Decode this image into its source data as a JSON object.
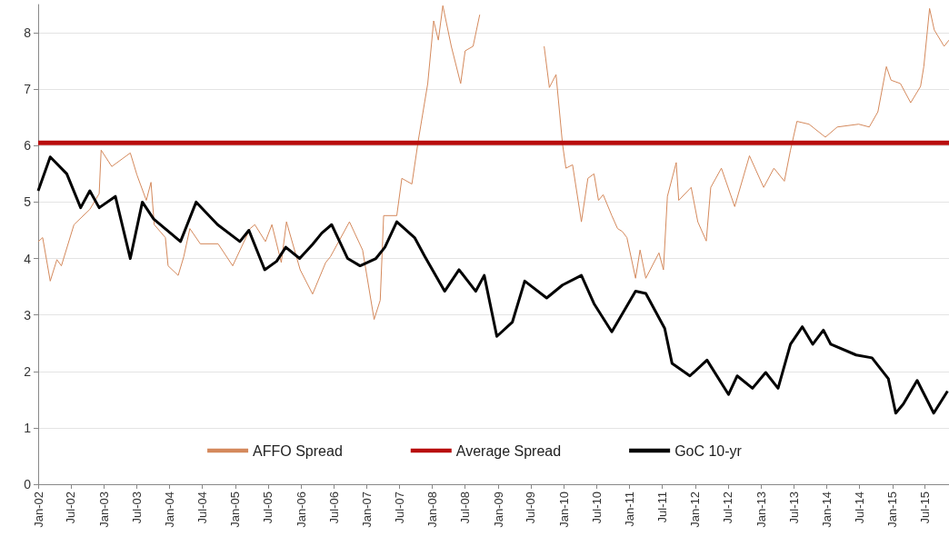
{
  "chart_data": {
    "type": "line",
    "xlim": [
      "2002-01-01",
      "2015-11-11"
    ],
    "ylim": [
      0,
      8.5
    ],
    "xticks": [
      {
        "value": "2002-01",
        "label": "Jan-02"
      },
      {
        "value": "2002-07",
        "label": "Jul-02"
      },
      {
        "value": "2003-01",
        "label": "Jan-03"
      },
      {
        "value": "2003-07",
        "label": "Jul-03"
      },
      {
        "value": "2004-01",
        "label": "Jan-04"
      },
      {
        "value": "2004-07",
        "label": "Jul-04"
      },
      {
        "value": "2005-01",
        "label": "Jan-05"
      },
      {
        "value": "2005-07",
        "label": "Jul-05"
      },
      {
        "value": "2006-01",
        "label": "Jan-06"
      },
      {
        "value": "2006-07",
        "label": "Jul-06"
      },
      {
        "value": "2007-01",
        "label": "Jan-07"
      },
      {
        "value": "2007-07",
        "label": "Jul-07"
      },
      {
        "value": "2008-01",
        "label": "Jan-08"
      },
      {
        "value": "2008-07",
        "label": "Jul-08"
      },
      {
        "value": "2009-01",
        "label": "Jan-09"
      },
      {
        "value": "2009-07",
        "label": "Jul-09"
      },
      {
        "value": "2010-01",
        "label": "Jan-10"
      },
      {
        "value": "2010-07",
        "label": "Jul-10"
      },
      {
        "value": "2011-01",
        "label": "Jan-11"
      },
      {
        "value": "2011-07",
        "label": "Jul-11"
      },
      {
        "value": "2012-01",
        "label": "Jan-12"
      },
      {
        "value": "2012-07",
        "label": "Jul-12"
      },
      {
        "value": "2013-01",
        "label": "Jan-13"
      },
      {
        "value": "2013-07",
        "label": "Jul-13"
      },
      {
        "value": "2014-01",
        "label": "Jan-14"
      },
      {
        "value": "2014-07",
        "label": "Jul-14"
      },
      {
        "value": "2015-01",
        "label": "Jan-15"
      },
      {
        "value": "2015-07",
        "label": "Jul-15"
      }
    ],
    "yticks": [
      0,
      1,
      2,
      3,
      4,
      5,
      6,
      7,
      8
    ],
    "grid": "y",
    "legend": "bottom",
    "marker": "none",
    "series": [
      {
        "name": "AFFO Spread",
        "color": "#d4895c",
        "x": [
          "2002-01-01",
          "2002-01-26",
          "2002-03-09",
          "2002-04-15",
          "2002-05-10",
          "2002-07-19",
          "2002-10-15",
          "2002-12-06",
          "2002-12-17",
          "2003-02-14",
          "2003-05-28",
          "2003-07-04",
          "2003-08-25",
          "2003-09-20",
          "2003-10-08",
          "2003-12-09",
          "2003-12-24",
          "2004-02-18",
          "2004-03-20",
          "2004-04-23",
          "2004-06-20",
          "2004-09-27",
          "2004-12-17",
          "2005-03-24",
          "2005-04-19",
          "2005-06-17",
          "2005-07-23",
          "2005-09-13",
          "2005-10-12",
          "2005-12-27",
          "2006-03-06",
          "2006-05-18",
          "2006-06-13",
          "2006-09-27",
          "2006-12-09",
          "2007-02-11",
          "2007-03-17",
          "2007-04-05",
          "2007-06-17",
          "2007-07-15",
          "2007-09-09",
          "2007-10-15",
          "2007-12-06",
          "2008-01-08",
          "2008-02-03",
          "2008-02-28",
          "2008-04-15",
          "2008-06-06",
          "2008-07-01",
          "2008-08-14",
          "2008-09-20",
          "2009-02-28",
          "2009-09-13",
          "2009-10-12",
          "2009-11-18",
          "2009-12-24",
          "2010-01-12",
          "2010-02-18",
          "2010-04-08",
          "2010-05-14",
          "2010-06-17",
          "2010-07-12",
          "2010-08-07",
          "2010-09-24",
          "2010-10-26",
          "2010-11-21",
          "2010-12-17",
          "2011-02-03",
          "2011-02-28",
          "2011-04-01",
          "2011-06-13",
          "2011-07-08",
          "2011-07-30",
          "2011-09-17",
          "2011-10-01",
          "2011-12-09",
          "2012-01-15",
          "2012-03-02",
          "2012-03-27",
          "2012-05-25",
          "2012-08-07",
          "2012-10-28",
          "2013-01-15",
          "2013-03-13",
          "2013-05-10",
          "2013-06-13",
          "2013-07-19",
          "2013-09-24",
          "2013-12-24",
          "2014-02-28",
          "2014-06-27",
          "2014-08-25",
          "2014-10-12",
          "2014-11-28",
          "2014-12-24",
          "2015-02-14",
          "2015-04-12",
          "2015-06-06",
          "2015-06-24",
          "2015-07-26",
          "2015-08-21",
          "2015-10-15",
          "2015-11-11"
        ],
        "values": [
          4.3,
          4.37,
          3.6,
          3.98,
          3.87,
          4.6,
          4.87,
          5.15,
          5.92,
          5.63,
          5.87,
          5.48,
          5.03,
          5.35,
          4.6,
          4.37,
          3.87,
          3.7,
          4.03,
          4.53,
          4.26,
          4.26,
          3.87,
          4.53,
          4.6,
          4.3,
          4.6,
          3.93,
          4.65,
          3.8,
          3.37,
          3.93,
          4.03,
          4.65,
          4.15,
          2.92,
          3.26,
          4.76,
          4.76,
          5.42,
          5.32,
          6.1,
          7.1,
          8.21,
          7.87,
          8.48,
          7.76,
          7.1,
          7.68,
          7.76,
          8.32,
          null,
          7.76,
          7.03,
          7.26,
          6.03,
          5.6,
          5.66,
          4.65,
          5.42,
          5.5,
          5.03,
          5.13,
          4.76,
          4.53,
          4.48,
          4.37,
          3.65,
          4.15,
          3.65,
          4.1,
          3.8,
          5.1,
          5.7,
          5.03,
          5.26,
          4.65,
          4.31,
          5.26,
          5.6,
          4.92,
          5.82,
          5.26,
          5.6,
          5.37,
          5.92,
          6.43,
          6.38,
          6.15,
          6.33,
          6.38,
          6.33,
          6.6,
          7.4,
          7.16,
          7.1,
          6.76,
          7.05,
          7.4,
          8.43,
          8.05,
          7.76,
          7.87
        ]
      },
      {
        "name": "Average Spread",
        "color": "#b80d0d",
        "x": [
          "2002-01-01",
          "2015-11-11"
        ],
        "values": [
          6.05,
          6.05
        ]
      },
      {
        "name": "GoC 10-yr",
        "color": "#000000",
        "x": [
          "2002-01-01",
          "2002-03-09",
          "2002-06-09",
          "2002-08-25",
          "2002-10-15",
          "2002-12-06",
          "2003-03-06",
          "2003-05-28",
          "2003-08-03",
          "2003-10-05",
          "2004-03-02",
          "2004-05-28",
          "2004-09-24",
          "2005-01-26",
          "2005-03-17",
          "2005-06-13",
          "2005-08-18",
          "2005-10-08",
          "2005-12-24",
          "2006-03-06",
          "2006-04-26",
          "2006-06-20",
          "2006-09-17",
          "2006-11-25",
          "2007-02-21",
          "2007-04-12",
          "2007-06-17",
          "2007-09-24",
          "2007-11-21",
          "2008-03-09",
          "2008-05-28",
          "2008-08-29",
          "2008-10-15",
          "2008-12-24",
          "2009-03-20",
          "2009-05-28",
          "2009-09-27",
          "2009-12-24",
          "2010-04-08",
          "2010-06-17",
          "2010-09-24",
          "2011-02-03",
          "2011-04-01",
          "2011-07-15",
          "2011-08-25",
          "2011-12-02",
          "2012-03-06",
          "2012-07-04",
          "2012-08-21",
          "2012-11-14",
          "2013-01-26",
          "2013-04-05",
          "2013-06-13",
          "2013-08-18",
          "2013-10-15",
          "2013-12-13",
          "2014-01-23",
          "2014-06-13",
          "2014-09-09",
          "2014-12-09",
          "2015-01-19",
          "2015-03-02",
          "2015-05-18",
          "2015-08-18",
          "2015-11-03"
        ],
        "values": [
          5.2,
          5.8,
          5.5,
          4.9,
          5.2,
          4.9,
          5.1,
          4.0,
          5.0,
          4.7,
          4.3,
          5.0,
          4.6,
          4.3,
          4.5,
          3.8,
          3.95,
          4.2,
          4.0,
          4.25,
          4.45,
          4.6,
          4.0,
          3.87,
          4.0,
          4.2,
          4.65,
          4.37,
          4.03,
          3.42,
          3.8,
          3.42,
          3.7,
          2.62,
          2.87,
          3.6,
          3.3,
          3.53,
          3.7,
          3.2,
          2.7,
          3.42,
          3.38,
          2.76,
          2.14,
          1.92,
          2.2,
          1.59,
          1.92,
          1.7,
          1.98,
          1.7,
          2.48,
          2.79,
          2.48,
          2.73,
          2.48,
          2.29,
          2.24,
          1.87,
          1.26,
          1.42,
          1.84,
          1.26,
          1.65
        ]
      }
    ]
  }
}
